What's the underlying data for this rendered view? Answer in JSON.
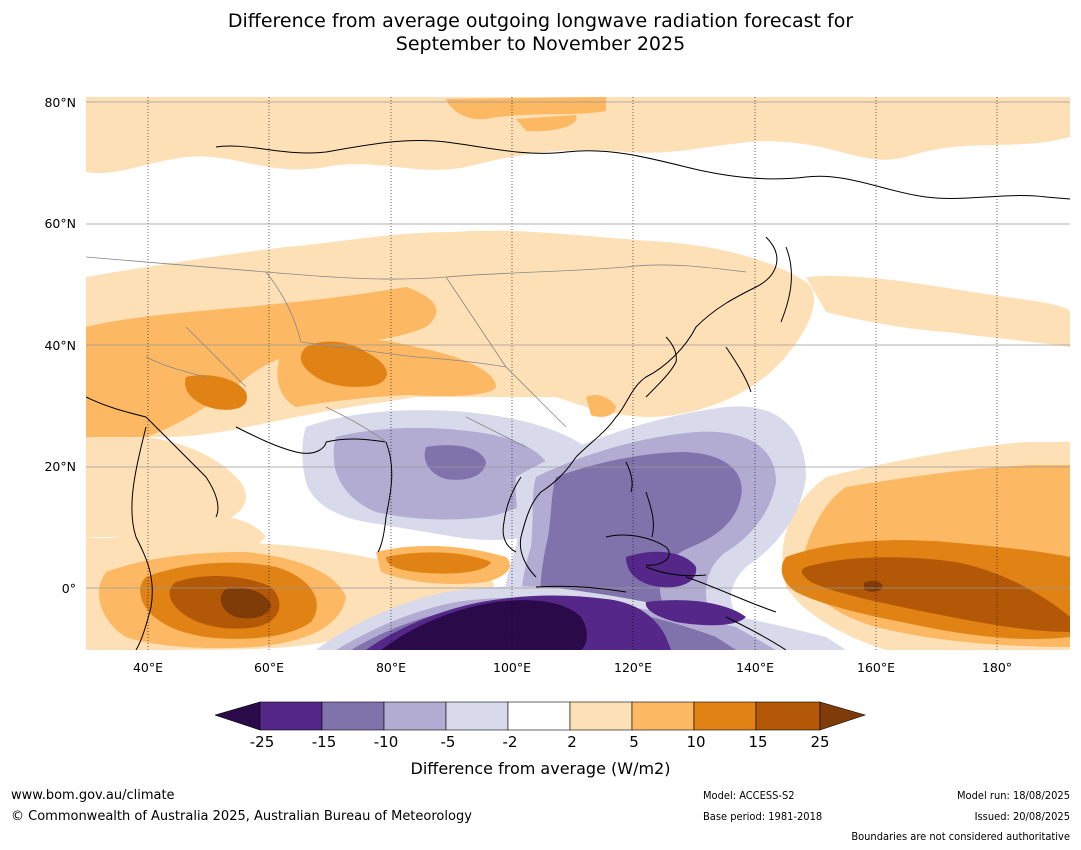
{
  "title_line1": "Difference from average outgoing longwave radiation forecast for",
  "title_line2": "September to November 2025",
  "map": {
    "lat_labels": [
      "80°N",
      "60°N",
      "40°N",
      "20°N",
      "0°"
    ],
    "lon_labels": [
      "40°E",
      "60°E",
      "80°E",
      "100°E",
      "120°E",
      "140°E",
      "160°E",
      "180°"
    ]
  },
  "legend": {
    "ticks": [
      "-25",
      "-15",
      "-10",
      "-5",
      "-2",
      "2",
      "5",
      "10",
      "15",
      "25"
    ],
    "colors": {
      "lt_-25": "#2b0a4a",
      "-25_-15": "#542788",
      "-15_-10": "#8073ac",
      "-10_-5": "#b2abd2",
      "-5_-2": "#d8daeb",
      "-2_2": "#ffffff",
      "2_5": "#fee0b6",
      "5_10": "#fdb863",
      "10_15": "#e08214",
      "15_25": "#b35806",
      "gt_25": "#7f3b08"
    },
    "label": "Difference from average (W/m2)"
  },
  "footer": {
    "website": "www.bom.gov.au/climate",
    "copyright": "© Commonwealth of Australia 2025, Australian Bureau of Meteorology",
    "model": "Model: ACCESS-S2",
    "base_period": "Base period: 1981-2018",
    "model_run": "Model run: 18/08/2025",
    "issued": "Issued: 20/08/2025",
    "disclaimer": "Boundaries are not considered authoritative"
  }
}
